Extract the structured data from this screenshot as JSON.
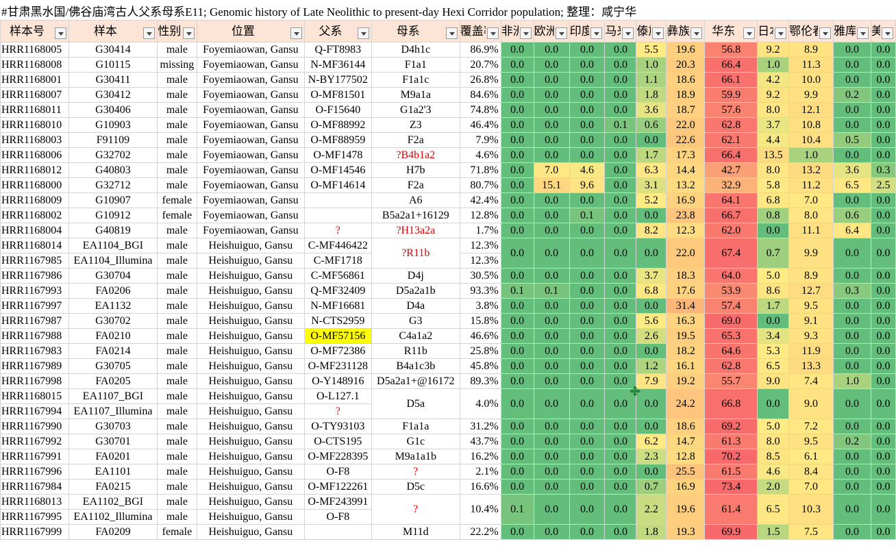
{
  "title": "#甘肃黑水国/佛谷庙湾古人父系母系E11; Genomic history of Late Neolithic to present-day Hexi Corridor population; 整理：咸宁华",
  "headers": [
    "样本号",
    "样本",
    "性别",
    "位置",
    "父系",
    "母系",
    "覆盖率",
    "非洲",
    "欧洲",
    "印度",
    "马来",
    "傣族",
    "彝族",
    "华东",
    "日本",
    "鄂伦春",
    "雅库特",
    "美洲"
  ],
  "colors": {
    "header_bg": "#fce4d6",
    "highlight_yellow": "#ffff00",
    "red_text": "#e00000",
    "scale_low": "#63be7b",
    "scale_mid": "#ffeb84",
    "scale_high": "#f8696b"
  },
  "rows": [
    {
      "id": "HRR1168005",
      "sample": "G30414",
      "sex": "male",
      "loc": "Foyemiaowan, Gansu",
      "y": "Q-FT8983",
      "mt": "D4h1c",
      "cov": "86.9%",
      "v": [
        "0.0",
        "0.0",
        "0.0",
        "0.0",
        "5.5",
        "19.6",
        "56.8",
        "9.2",
        "8.9",
        "0.0",
        "0.0"
      ]
    },
    {
      "id": "HRR1168008",
      "sample": "G10115",
      "sex": "missing",
      "loc": "Foyemiaowan, Gansu",
      "y": "N-MF36144",
      "mt": "F1a1",
      "cov": "20.7%",
      "v": [
        "0.0",
        "0.0",
        "0.0",
        "0.0",
        "1.0",
        "20.3",
        "66.4",
        "1.0",
        "11.3",
        "0.0",
        "0.0"
      ]
    },
    {
      "id": "HRR1168001",
      "sample": "G30411",
      "sex": "male",
      "loc": "Foyemiaowan, Gansu",
      "y": "N-BY177502",
      "mt": "F1a1c",
      "cov": "26.8%",
      "v": [
        "0.0",
        "0.0",
        "0.0",
        "0.0",
        "1.1",
        "18.6",
        "66.1",
        "4.2",
        "10.0",
        "0.0",
        "0.0"
      ]
    },
    {
      "id": "HRR1168007",
      "sample": "G30412",
      "sex": "male",
      "loc": "Foyemiaowan, Gansu",
      "y": "O-MF81501",
      "mt": "M9a1a",
      "cov": "84.6%",
      "v": [
        "0.0",
        "0.0",
        "0.0",
        "0.0",
        "1.8",
        "18.9",
        "59.9",
        "9.2",
        "9.9",
        "0.2",
        "0.0"
      ]
    },
    {
      "id": "HRR1168011",
      "sample": "G30406",
      "sex": "male",
      "loc": "Foyemiaowan, Gansu",
      "y": "O-F15640",
      "mt": "G1a2'3",
      "cov": "74.8%",
      "v": [
        "0.0",
        "0.0",
        "0.0",
        "0.0",
        "3.6",
        "18.7",
        "57.6",
        "8.0",
        "12.1",
        "0.0",
        "0.0"
      ]
    },
    {
      "id": "HRR1168010",
      "sample": "G10903",
      "sex": "male",
      "loc": "Foyemiaowan, Gansu",
      "y": "O-MF88992",
      "mt": "Z3",
      "cov": "46.4%",
      "v": [
        "0.0",
        "0.0",
        "0.0",
        "0.1",
        "0.6",
        "22.0",
        "62.8",
        "3.7",
        "10.8",
        "0.0",
        "0.0"
      ]
    },
    {
      "id": "HRR1168003",
      "sample": "F91109",
      "sex": "male",
      "loc": "Foyemiaowan, Gansu",
      "y": "O-MF88959",
      "mt": "F2a",
      "cov": "7.9%",
      "v": [
        "0.0",
        "0.0",
        "0.0",
        "0.0",
        "0.0",
        "22.6",
        "62.1",
        "4.4",
        "10.4",
        "0.5",
        "0.0"
      ]
    },
    {
      "id": "HRR1168006",
      "sample": "G32702",
      "sex": "male",
      "loc": "Foyemiaowan, Gansu",
      "y": "O-MF1478",
      "mt": "?B4b1a2",
      "mtRed": true,
      "cov": "4.6%",
      "v": [
        "0.0",
        "0.0",
        "0.0",
        "0.0",
        "1.7",
        "17.3",
        "66.4",
        "13.5",
        "1.0",
        "0.0",
        "0.0"
      ]
    },
    {
      "id": "HRR1168012",
      "sample": "G40803",
      "sex": "male",
      "loc": "Foyemiaowan, Gansu",
      "y": "O-MF14546",
      "mt": "H7b",
      "cov": "71.8%",
      "v": [
        "0.0",
        "7.0",
        "4.6",
        "0.0",
        "6.3",
        "14.4",
        "42.7",
        "8.0",
        "13.2",
        "3.6",
        "0.3"
      ]
    },
    {
      "id": "HRR1168000",
      "sample": "G32712",
      "sex": "male",
      "loc": "Foyemiaowan, Gansu",
      "y": "O-MF14614",
      "mt": "F2a",
      "cov": "80.7%",
      "v": [
        "0.0",
        "15.1",
        "9.6",
        "0.0",
        "3.1",
        "13.2",
        "32.9",
        "5.8",
        "11.2",
        "6.5",
        "2.5"
      ]
    },
    {
      "id": "HRR1168009",
      "sample": "G10907",
      "sex": "female",
      "loc": "Foyemiaowan, Gansu",
      "y": "",
      "mt": "A6",
      "cov": "42.4%",
      "v": [
        "0.0",
        "0.0",
        "0.0",
        "0.0",
        "5.2",
        "16.9",
        "64.1",
        "6.8",
        "7.0",
        "0.0",
        "0.0"
      ]
    },
    {
      "id": "HRR1168002",
      "sample": "G10912",
      "sex": "female",
      "loc": "Foyemiaowan, Gansu",
      "y": "",
      "mt": "B5a2a1+16129",
      "cov": "12.8%",
      "v": [
        "0.0",
        "0.0",
        "0.1",
        "0.0",
        "0.0",
        "23.8",
        "66.7",
        "0.8",
        "8.0",
        "0.6",
        "0.0"
      ]
    },
    {
      "id": "HRR1168004",
      "sample": "G40819",
      "sex": "male",
      "loc": "Foyemiaowan, Gansu",
      "y": "?",
      "yRed": true,
      "mt": "?H13a2a",
      "mtRed": true,
      "cov": "1.7%",
      "v": [
        "0.0",
        "0.0",
        "0.0",
        "0.0",
        "8.2",
        "12.3",
        "62.0",
        "0.0",
        "11.1",
        "6.4",
        "0.0"
      ]
    },
    {
      "id": "HRR1168014",
      "sample": "EA1104_BGI",
      "sex": "male",
      "loc": "Heishuiguo, Gansu",
      "y": "C-MF446422",
      "mt": "?R11b",
      "mtRed": true,
      "mtSpan": 2,
      "cov": "12.3%",
      "v": [
        "0.0",
        "0.0",
        "0.0",
        "0.0",
        "0.0",
        "22.0",
        "67.4",
        "0.7",
        "9.9",
        "0.0",
        "0.0"
      ],
      "vSpan": 2
    },
    {
      "id": "HRR1167985",
      "sample": "EA1104_Illumina",
      "sex": "male",
      "loc": "Heishuiguo, Gansu",
      "y": "C-MF1718",
      "cov": "12.3%",
      "skipMt": true,
      "skipV": true
    },
    {
      "id": "HRR1167986",
      "sample": "G30704",
      "sex": "male",
      "loc": "Heishuiguo, Gansu",
      "y": "C-MF56861",
      "mt": "D4j",
      "cov": "30.5%",
      "v": [
        "0.0",
        "0.0",
        "0.0",
        "0.0",
        "3.7",
        "18.3",
        "64.0",
        "5.0",
        "8.9",
        "0.0",
        "0.0"
      ]
    },
    {
      "id": "HRR1167993",
      "sample": "FA0206",
      "sex": "male",
      "loc": "Heishuiguo, Gansu",
      "y": "Q-MF32409",
      "mt": "D5a2a1b",
      "cov": "93.3%",
      "v": [
        "0.1",
        "0.1",
        "0.0",
        "0.0",
        "6.8",
        "17.6",
        "53.9",
        "8.6",
        "12.7",
        "0.3",
        "0.0"
      ]
    },
    {
      "id": "HRR1167997",
      "sample": "EA1132",
      "sex": "male",
      "loc": "Heishuiguo, Gansu",
      "y": "N-MF16681",
      "mt": "D4a",
      "cov": "3.8%",
      "v": [
        "0.0",
        "0.0",
        "0.0",
        "0.0",
        "0.0",
        "31.4",
        "57.4",
        "1.7",
        "9.5",
        "0.0",
        "0.0"
      ]
    },
    {
      "id": "HRR1167987",
      "sample": "G30702",
      "sex": "male",
      "loc": "Heishuiguo, Gansu",
      "y": "N-CTS2959",
      "mt": "G3",
      "cov": "15.8%",
      "v": [
        "0.0",
        "0.0",
        "0.0",
        "0.0",
        "5.6",
        "16.3",
        "69.0",
        "0.0",
        "9.1",
        "0.0",
        "0.0"
      ]
    },
    {
      "id": "HRR1167988",
      "sample": "FA0210",
      "sex": "male",
      "loc": "Heishuiguo, Gansu",
      "y": "O-MF57156",
      "yHi": true,
      "mt": "C4a1a2",
      "cov": "46.6%",
      "v": [
        "0.0",
        "0.0",
        "0.0",
        "0.0",
        "2.6",
        "19.5",
        "65.3",
        "3.4",
        "9.3",
        "0.0",
        "0.0"
      ]
    },
    {
      "id": "HRR1167983",
      "sample": "FA0214",
      "sex": "male",
      "loc": "Heishuiguo, Gansu",
      "y": "O-MF72386",
      "mt": "R11b",
      "cov": "25.8%",
      "v": [
        "0.0",
        "0.0",
        "0.0",
        "0.0",
        "0.0",
        "18.2",
        "64.6",
        "5.3",
        "11.9",
        "0.0",
        "0.0"
      ]
    },
    {
      "id": "HRR1167989",
      "sample": "G30705",
      "sex": "male",
      "loc": "Heishuiguo, Gansu",
      "y": "O-MF231128",
      "mt": "B4a1c3b",
      "cov": "45.8%",
      "v": [
        "0.0",
        "0.0",
        "0.0",
        "0.0",
        "1.2",
        "16.1",
        "62.8",
        "6.5",
        "13.3",
        "0.0",
        "0.0"
      ]
    },
    {
      "id": "HRR1167998",
      "sample": "FA0205",
      "sex": "male",
      "loc": "Heishuiguo, Gansu",
      "y": "O-Y148916",
      "mt": "D5a2a1+@16172",
      "cov": "89.3%",
      "v": [
        "0.0",
        "0.0",
        "0.0",
        "0.0",
        "7.9",
        "19.2",
        "55.7",
        "9.0",
        "7.4",
        "1.0",
        "0.0"
      ]
    },
    {
      "id": "HRR1168015",
      "sample": "EA1107_BGI",
      "sex": "male",
      "loc": "Heishuiguo, Gansu",
      "y": "O-L127.1",
      "mt": "D5a",
      "mtSpan": 2,
      "cov": "4.0%",
      "covSpan": 2,
      "v": [
        "0.0",
        "0.0",
        "0.0",
        "0.0",
        "0.0",
        "24.2",
        "66.8",
        "0.0",
        "9.0",
        "0.0",
        "0.0"
      ],
      "vSpan": 2
    },
    {
      "id": "HRR1167994",
      "sample": "EA1107_Illumina",
      "sex": "male",
      "loc": "Heishuiguo, Gansu",
      "y": "?",
      "yRed": true,
      "skipMt": true,
      "skipCov": true,
      "skipV": true
    },
    {
      "id": "HRR1167990",
      "sample": "G30703",
      "sex": "male",
      "loc": "Heishuiguo, Gansu",
      "y": "O-TY93103",
      "mt": "F1a1a",
      "cov": "31.2%",
      "v": [
        "0.0",
        "0.0",
        "0.0",
        "0.0",
        "0.0",
        "18.6",
        "69.2",
        "5.0",
        "7.2",
        "0.0",
        "0.0"
      ]
    },
    {
      "id": "HRR1167992",
      "sample": "G30701",
      "sex": "male",
      "loc": "Heishuiguo, Gansu",
      "y": "O-CTS195",
      "mt": "G1c",
      "cov": "43.7%",
      "v": [
        "0.0",
        "0.0",
        "0.0",
        "0.0",
        "6.2",
        "14.7",
        "61.3",
        "8.0",
        "9.5",
        "0.2",
        "0.0"
      ]
    },
    {
      "id": "HRR1167991",
      "sample": "FA0201",
      "sex": "male",
      "loc": "Heishuiguo, Gansu",
      "y": "O-MF228395",
      "mt": "M9a1a1b",
      "cov": "16.2%",
      "v": [
        "0.0",
        "0.0",
        "0.0",
        "0.0",
        "2.3",
        "12.8",
        "70.2",
        "8.5",
        "6.1",
        "0.0",
        "0.0"
      ]
    },
    {
      "id": "HRR1167996",
      "sample": "EA1101",
      "sex": "male",
      "loc": "Heishuiguo, Gansu",
      "y": "O-F8",
      "mt": "?",
      "mtRed": true,
      "cov": "2.1%",
      "v": [
        "0.0",
        "0.0",
        "0.0",
        "0.0",
        "0.0",
        "25.5",
        "61.5",
        "4.6",
        "8.4",
        "0.0",
        "0.0"
      ]
    },
    {
      "id": "HRR1167984",
      "sample": "FA0215",
      "sex": "male",
      "loc": "Heishuiguo, Gansu",
      "y": "O-MF122261",
      "mt": "D5c",
      "cov": "16.6%",
      "v": [
        "0.0",
        "0.0",
        "0.0",
        "0.0",
        "0.7",
        "16.9",
        "73.4",
        "2.0",
        "7.0",
        "0.0",
        "0.0"
      ]
    },
    {
      "id": "HRR1168013",
      "sample": "EA1102_BGI",
      "sex": "male",
      "loc": "Heishuiguo, Gansu",
      "y": "O-MF243991",
      "mt": "?",
      "mtRed": true,
      "mtSpan": 2,
      "cov": "10.4%",
      "covSpan": 2,
      "v": [
        "0.1",
        "0.0",
        "0.0",
        "0.0",
        "2.2",
        "19.6",
        "61.4",
        "6.5",
        "10.3",
        "0.0",
        "0.0"
      ],
      "vSpan": 2
    },
    {
      "id": "HRR1167995",
      "sample": "EA1102_Illumina",
      "sex": "male",
      "loc": "Heishuiguo, Gansu",
      "y": "O-F8",
      "skipMt": true,
      "skipCov": true,
      "skipV": true
    },
    {
      "id": "HRR1167999",
      "sample": "FA0209",
      "sex": "female",
      "loc": "Heishuiguo, Gansu",
      "y": "",
      "mt": "M11d",
      "cov": "22.2%",
      "v": [
        "0.0",
        "0.0",
        "0.0",
        "0.0",
        "1.8",
        "19.3",
        "69.9",
        "1.5",
        "7.5",
        "0.0",
        "0.0"
      ]
    }
  ]
}
